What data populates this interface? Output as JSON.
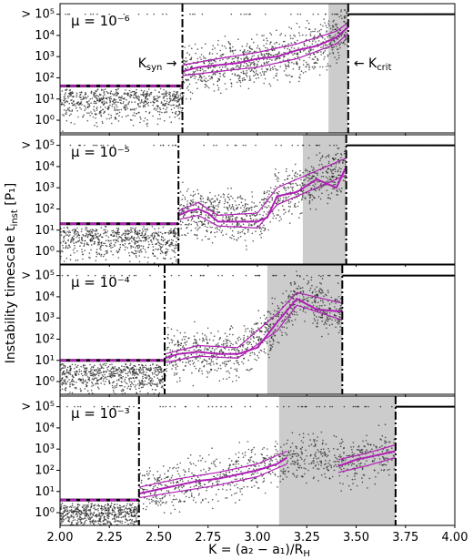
{
  "chart_data": {
    "type": "scatter",
    "layout_note": "four vertically stacked panels sharing x axis",
    "xlabel": "K = (a₂ − a₁)/R",
    "xlabel_sub": "H",
    "ylabel": "Instability timescale t",
    "ylabel_sub": "inst",
    "ylabel_unit": " [P₁]",
    "xlim": [
      2.0,
      4.0
    ],
    "x_ticks": [
      "2.00",
      "2.25",
      "2.50",
      "2.75",
      "3.00",
      "3.25",
      "3.50",
      "3.75",
      "4.00"
    ],
    "x_tick_values": [
      2.0,
      2.25,
      2.5,
      2.75,
      3.0,
      3.25,
      3.5,
      3.75,
      4.0
    ],
    "ylim_log10": [
      -0.6,
      5.5
    ],
    "y_ticks": [
      {
        "value": 0,
        "label": "10⁰"
      },
      {
        "value": 1,
        "label": "10¹"
      },
      {
        "value": 2,
        "label": "10²"
      },
      {
        "value": 3,
        "label": "10³"
      },
      {
        "value": 4,
        "label": "10⁴"
      },
      {
        "value": 5,
        "label": "> 10⁵"
      }
    ],
    "colors": {
      "points": "#222222",
      "median": "#b01fb5",
      "shade": "#cccccc",
      "lines": "#000000"
    },
    "panels": [
      {
        "mu_label": "μ = 10⁻⁶",
        "k_syn": 2.62,
        "k_crit": 3.46,
        "shade": [
          3.36,
          3.46
        ],
        "plateau_y": 1.62,
        "data_band": [
          [
            2.62,
            2.2
          ],
          [
            2.8,
            2.5
          ],
          [
            3.0,
            2.8
          ],
          [
            3.2,
            3.2
          ],
          [
            3.36,
            3.7
          ],
          [
            3.46,
            4.4
          ]
        ],
        "median": [
          [
            2.62,
            2.3
          ],
          [
            2.7,
            2.5
          ],
          [
            2.8,
            2.6
          ],
          [
            2.9,
            2.7
          ],
          [
            3.0,
            2.9
          ],
          [
            3.1,
            3.0
          ],
          [
            3.2,
            3.3
          ],
          [
            3.3,
            3.5
          ],
          [
            3.4,
            3.9
          ],
          [
            3.46,
            4.4
          ]
        ],
        "upper": [
          [
            2.62,
            2.6
          ],
          [
            2.8,
            2.9
          ],
          [
            3.0,
            3.2
          ],
          [
            3.2,
            3.6
          ],
          [
            3.4,
            4.2
          ],
          [
            3.46,
            4.6
          ]
        ],
        "lower": [
          [
            2.62,
            2.1
          ],
          [
            2.8,
            2.3
          ],
          [
            3.0,
            2.5
          ],
          [
            3.2,
            2.9
          ],
          [
            3.4,
            3.6
          ],
          [
            3.46,
            4.1
          ]
        ],
        "annotations": [
          {
            "text": "K",
            "sub": "syn",
            "arrow": "→",
            "side": "left",
            "x": 2.62,
            "y": 2.5
          },
          {
            "text": "K",
            "sub": "crit",
            "arrow": "←",
            "side": "right",
            "x": 3.46,
            "y": 2.5
          }
        ]
      },
      {
        "mu_label": "μ = 10⁻⁵",
        "k_syn": 2.6,
        "k_crit": 3.45,
        "shade": [
          3.23,
          3.45
        ],
        "plateau_y": 1.3,
        "data_band": [
          [
            2.6,
            1.8
          ],
          [
            2.8,
            1.8
          ],
          [
            3.0,
            1.6
          ],
          [
            3.1,
            2.6
          ],
          [
            3.3,
            3.2
          ],
          [
            3.45,
            4.0
          ]
        ],
        "median": [
          [
            2.6,
            1.7
          ],
          [
            2.65,
            1.9
          ],
          [
            2.7,
            2.0
          ],
          [
            2.75,
            1.8
          ],
          [
            2.8,
            1.4
          ],
          [
            2.9,
            1.4
          ],
          [
            3.0,
            1.4
          ],
          [
            3.05,
            1.6
          ],
          [
            3.1,
            2.6
          ],
          [
            3.2,
            2.8
          ],
          [
            3.3,
            3.4
          ],
          [
            3.4,
            3.0
          ],
          [
            3.45,
            4.0
          ]
        ],
        "upper": [
          [
            2.6,
            1.9
          ],
          [
            2.7,
            2.3
          ],
          [
            2.8,
            1.7
          ],
          [
            3.0,
            1.8
          ],
          [
            3.1,
            3.0
          ],
          [
            3.3,
            3.8
          ],
          [
            3.45,
            4.4
          ]
        ],
        "lower": [
          [
            2.6,
            1.5
          ],
          [
            2.7,
            1.7
          ],
          [
            2.8,
            1.2
          ],
          [
            3.0,
            1.1
          ],
          [
            3.1,
            2.2
          ],
          [
            3.3,
            3.0
          ],
          [
            3.45,
            3.6
          ]
        ],
        "annotations": []
      },
      {
        "mu_label": "μ = 10⁻⁴",
        "k_syn": 2.53,
        "k_crit": 3.43,
        "shade": [
          3.05,
          3.43
        ],
        "plateau_y": 1.0,
        "data_band": [
          [
            2.53,
            1.1
          ],
          [
            2.7,
            1.4
          ],
          [
            2.9,
            1.3
          ],
          [
            3.1,
            2.7
          ],
          [
            3.2,
            4.0
          ],
          [
            3.4,
            3.3
          ]
        ],
        "median": [
          [
            2.53,
            1.1
          ],
          [
            2.6,
            1.3
          ],
          [
            2.7,
            1.4
          ],
          [
            2.8,
            1.3
          ],
          [
            2.9,
            1.3
          ],
          [
            3.0,
            1.6
          ],
          [
            3.1,
            2.8
          ],
          [
            3.2,
            3.9
          ],
          [
            3.3,
            3.4
          ],
          [
            3.43,
            3.3
          ]
        ],
        "upper": [
          [
            2.53,
            1.3
          ],
          [
            2.7,
            1.7
          ],
          [
            2.9,
            1.6
          ],
          [
            3.1,
            3.2
          ],
          [
            3.2,
            4.2
          ],
          [
            3.43,
            3.7
          ]
        ],
        "lower": [
          [
            2.53,
            0.9
          ],
          [
            2.7,
            1.2
          ],
          [
            2.9,
            1.1
          ],
          [
            3.1,
            2.4
          ],
          [
            3.2,
            3.6
          ],
          [
            3.43,
            2.9
          ]
        ],
        "annotations": []
      },
      {
        "mu_label": "μ = 10⁻³",
        "k_syn": 2.4,
        "k_crit": 3.7,
        "shade": [
          3.11,
          3.7
        ],
        "plateau_y": 0.6,
        "data_band": [
          [
            2.4,
            0.9
          ],
          [
            2.6,
            1.3
          ],
          [
            2.8,
            1.6
          ],
          [
            3.0,
            2.1
          ],
          [
            3.25,
            2.7
          ],
          [
            3.45,
            2.4
          ],
          [
            3.7,
            2.9
          ]
        ],
        "median": [
          [
            2.4,
            0.9
          ],
          [
            2.5,
            1.1
          ],
          [
            2.6,
            1.3
          ],
          [
            2.7,
            1.5
          ],
          [
            2.8,
            1.6
          ],
          [
            2.9,
            1.8
          ],
          [
            3.0,
            2.0
          ],
          [
            3.1,
            2.3
          ],
          [
            3.15,
            2.6
          ]
        ],
        "upper": [
          [
            2.4,
            1.2
          ],
          [
            2.6,
            1.6
          ],
          [
            2.8,
            1.9
          ],
          [
            3.0,
            2.3
          ],
          [
            3.15,
            2.9
          ]
        ],
        "lower": [
          [
            2.4,
            0.7
          ],
          [
            2.6,
            1.0
          ],
          [
            2.8,
            1.3
          ],
          [
            3.0,
            1.7
          ],
          [
            3.15,
            2.3
          ]
        ],
        "median2": [
          [
            3.41,
            2.2
          ],
          [
            3.5,
            2.5
          ],
          [
            3.6,
            2.7
          ],
          [
            3.7,
            2.9
          ]
        ],
        "upper2": [
          [
            3.41,
            2.5
          ],
          [
            3.55,
            2.8
          ],
          [
            3.7,
            3.2
          ]
        ],
        "lower2": [
          [
            3.41,
            1.9
          ],
          [
            3.55,
            2.2
          ],
          [
            3.7,
            2.6
          ]
        ],
        "annotations": []
      }
    ]
  }
}
